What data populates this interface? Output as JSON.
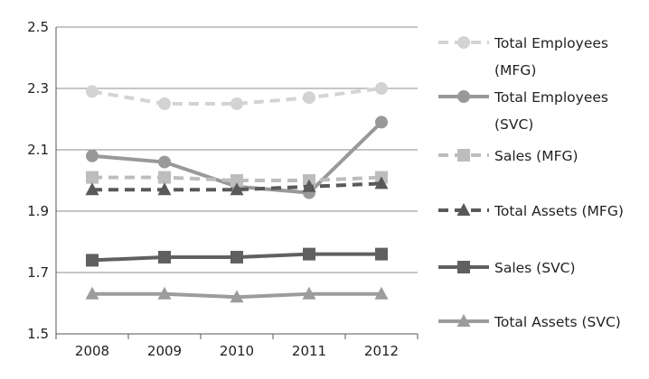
{
  "chart_data": {
    "type": "line",
    "x": [
      "2008",
      "2009",
      "2010",
      "2011",
      "2012"
    ],
    "ylim": [
      1.5,
      2.5
    ],
    "yticks": [
      "2.5",
      "2.3",
      "2.1",
      "1.9",
      "1.7",
      "1.5"
    ],
    "grid": "horizontal",
    "legend_position": "right",
    "series": [
      {
        "name_lines": [
          "Total Employees",
          "(MFG)"
        ],
        "values": [
          2.29,
          2.25,
          2.25,
          2.27,
          2.3
        ],
        "color": "#d3d3d3",
        "dash": true,
        "marker": "circle"
      },
      {
        "name_lines": [
          "Total Employees",
          "(SVC)"
        ],
        "values": [
          2.08,
          2.06,
          1.98,
          1.96,
          2.19
        ],
        "color": "#999999",
        "dash": false,
        "marker": "circle"
      },
      {
        "name_lines": [
          "Sales (MFG)"
        ],
        "values": [
          2.01,
          2.01,
          2.0,
          2.0,
          2.01
        ],
        "color": "#bdbdbd",
        "dash": true,
        "marker": "square"
      },
      {
        "name_lines": [
          "Total Assets (MFG)"
        ],
        "values": [
          1.97,
          1.97,
          1.97,
          1.98,
          1.99
        ],
        "color": "#595959",
        "dash": true,
        "marker": "triangle"
      },
      {
        "name_lines": [
          "Sales (SVC)"
        ],
        "values": [
          1.74,
          1.75,
          1.75,
          1.76,
          1.76
        ],
        "color": "#606060",
        "dash": false,
        "marker": "square"
      },
      {
        "name_lines": [
          "Total Assets (SVC)"
        ],
        "values": [
          1.63,
          1.63,
          1.62,
          1.63,
          1.63
        ],
        "color": "#9c9c9c",
        "dash": false,
        "marker": "triangle"
      }
    ]
  }
}
